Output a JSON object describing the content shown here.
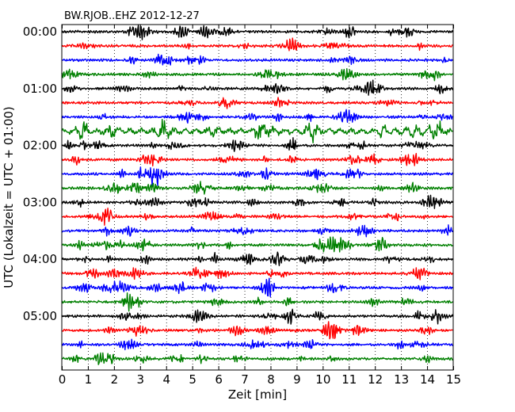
{
  "chart_data": {
    "type": "line",
    "title": "BW.RJOB..EHZ 2012-12-27",
    "xlabel": "Zeit  [min]",
    "ylabel": "UTC (Lokalzeit = UTC + 01:00)",
    "xlim": [
      0,
      15
    ],
    "x_ticks": [
      "0",
      "1",
      "2",
      "3",
      "4",
      "5",
      "6",
      "7",
      "8",
      "9",
      "10",
      "11",
      "12",
      "13",
      "14",
      "15"
    ],
    "y_tick_labels": [
      "00:00",
      "01:00",
      "02:00",
      "03:00",
      "04:00",
      "05:00"
    ],
    "y_tick_rows": [
      0,
      4,
      8,
      12,
      16,
      20
    ],
    "row_interval_min": 15,
    "rows": 24,
    "row_colors": [
      "#000000",
      "#ff0000",
      "#0000ff",
      "#008000"
    ],
    "grid": "vertical dotted lines at each minute"
  }
}
